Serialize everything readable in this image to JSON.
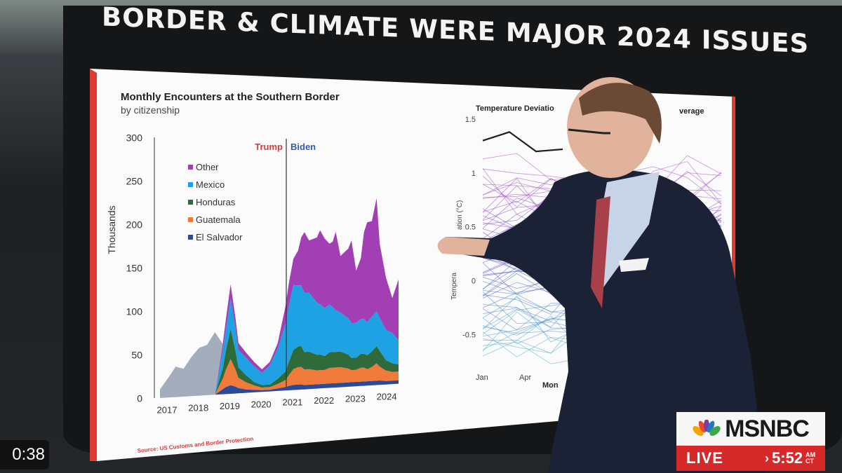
{
  "headline": "BORDER & CLIMATE WERE MAJOR 2024 ISSUES",
  "left_chart_title": "Monthly Encounters at the Southern Border",
  "left_chart_subtitle": "by citizenship",
  "left_chart_source": "Source: US Customs and Border Protection",
  "right_chart_title_visible": "Temperature Deviatio",
  "right_chart_title_tail": "verage",
  "right_chart_ylabel_start": "Tempera",
  "right_chart_ylabel_end": "ation (°C)",
  "right_chart_xlabel_visible": "Mon",
  "chart_data": [
    {
      "type": "area",
      "title": "Monthly Encounters at the Southern Border",
      "subtitle": "by citizenship",
      "ylabel": "Thousands",
      "ylim": [
        0,
        300
      ],
      "y_ticks": [
        "0",
        "50",
        "100",
        "150",
        "200",
        "250",
        "300"
      ],
      "x_ticks": [
        "2017",
        "2018",
        "2019",
        "2020",
        "2021",
        "2022",
        "2023",
        "2024"
      ],
      "annotations": [
        "Trump",
        "Biden"
      ],
      "legend_placement": "top-left",
      "x": [
        2017.0,
        2017.25,
        2017.5,
        2017.75,
        2018.0,
        2018.25,
        2018.5,
        2018.75,
        2019.0,
        2019.1,
        2019.25,
        2019.4,
        2019.5,
        2019.75,
        2020.0,
        2020.25,
        2020.5,
        2020.75,
        2021.0,
        2021.1,
        2021.25,
        2021.4,
        2021.5,
        2021.6,
        2021.75,
        2022.0,
        2022.1,
        2022.25,
        2022.4,
        2022.5,
        2022.6,
        2022.75,
        2023.0,
        2023.1,
        2023.25,
        2023.4,
        2023.5,
        2023.6,
        2023.75,
        2023.9,
        2024.0,
        2024.2,
        2024.4,
        2024.6
      ],
      "series": [
        {
          "name": "El Salvador",
          "color": "#2c4a9a",
          "values": [
            0,
            0,
            0,
            0,
            0,
            0,
            0,
            0,
            6,
            8,
            10,
            8,
            6,
            4,
            3,
            2,
            2,
            3,
            4,
            5,
            6,
            6,
            6,
            5,
            5,
            5,
            5,
            5,
            5,
            5,
            5,
            5,
            5,
            5,
            5,
            5,
            5,
            5,
            5,
            5,
            5,
            4,
            4,
            4
          ]
        },
        {
          "name": "Guatemala",
          "color": "#f07a3a",
          "values": [
            0,
            0,
            0,
            0,
            0,
            0,
            0,
            0,
            12,
            20,
            30,
            20,
            12,
            8,
            5,
            3,
            3,
            5,
            8,
            12,
            18,
            20,
            20,
            18,
            18,
            16,
            16,
            16,
            18,
            18,
            18,
            18,
            16,
            14,
            14,
            16,
            16,
            14,
            16,
            20,
            16,
            12,
            10,
            10
          ]
        },
        {
          "name": "Honduras",
          "color": "#2f6a3a",
          "values": [
            0,
            0,
            0,
            0,
            0,
            0,
            0,
            0,
            12,
            22,
            35,
            22,
            12,
            8,
            4,
            3,
            3,
            6,
            10,
            15,
            22,
            24,
            24,
            20,
            20,
            18,
            18,
            16,
            18,
            18,
            18,
            18,
            16,
            14,
            14,
            16,
            16,
            16,
            18,
            20,
            18,
            12,
            10,
            8
          ]
        },
        {
          "name": "Mexico",
          "color": "#1ea2e4",
          "values": [
            0,
            0,
            0,
            0,
            0,
            0,
            0,
            0,
            20,
            24,
            35,
            26,
            20,
            20,
            18,
            14,
            22,
            35,
            55,
            65,
            75,
            70,
            70,
            68,
            68,
            60,
            58,
            55,
            55,
            52,
            48,
            45,
            42,
            40,
            40,
            40,
            40,
            38,
            40,
            40,
            38,
            35,
            35,
            28
          ]
        },
        {
          "name": "Other",
          "color": "#a23fb5",
          "values": [
            0,
            0,
            0,
            0,
            0,
            0,
            0,
            0,
            8,
            12,
            16,
            12,
            8,
            6,
            5,
            4,
            4,
            6,
            20,
            25,
            30,
            40,
            55,
            70,
            60,
            75,
            85,
            80,
            70,
            75,
            90,
            65,
            80,
            95,
            60,
            70,
            100,
            115,
            110,
            130,
            85,
            60,
            40,
            70
          ]
        },
        {
          "name": "",
          "color": "#a4adbb",
          "values": [
            10,
            22,
            35,
            32,
            45,
            55,
            58,
            72,
            0,
            0,
            0,
            0,
            0,
            0,
            0,
            0,
            0,
            0,
            0,
            0,
            0,
            0,
            0,
            0,
            0,
            0,
            0,
            0,
            0,
            0,
            0,
            0,
            0,
            0,
            0,
            0,
            0,
            0,
            0,
            0,
            0,
            0,
            0,
            0
          ]
        }
      ]
    },
    {
      "type": "line",
      "title": "Temperature Deviatio… …verage",
      "ylim": [
        -0.7,
        1.5
      ],
      "y_ticks": [
        "1.5",
        "1",
        "0.5",
        "0",
        "-0.5"
      ],
      "x_ticks": [
        "Jan",
        "Apr"
      ],
      "highlight_line": [
        1.3,
        1.38,
        1.2,
        1.22
      ],
      "note": "many faint yearly lines, colored from blue/green (older) to purple (recent)"
    }
  ],
  "broadcast": {
    "timer": "0:38",
    "network": "MSNBC",
    "live_label": "LIVE",
    "live_time": "5:52",
    "am": "AM",
    "zone": "CT"
  }
}
